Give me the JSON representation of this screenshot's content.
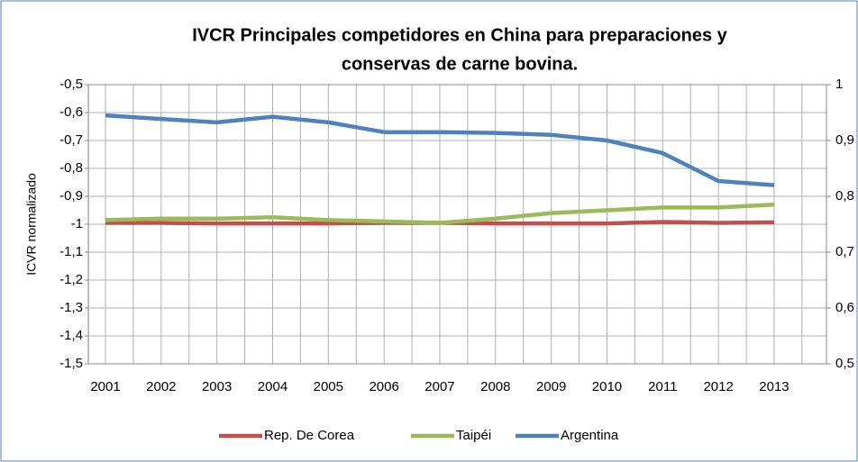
{
  "chart_data": {
    "type": "line",
    "title": [
      "IVCR  Principales competidores  en China para preparaciones y",
      "conservas de carne  bovina."
    ],
    "y_label": "ICVR normalizado",
    "categories": [
      "2001",
      "2002",
      "2003",
      "2004",
      "2005",
      "2006",
      "2007",
      "2008",
      "2009",
      "2010",
      "2011",
      "2012",
      "2013"
    ],
    "series": [
      {
        "name": "Rep. De Corea",
        "color": "#c0504d",
        "values": [
          -0.995,
          -0.995,
          -0.997,
          -0.997,
          -0.997,
          -0.995,
          -0.995,
          -0.997,
          -0.997,
          -0.997,
          -0.992,
          -0.995,
          -0.993
        ]
      },
      {
        "name": "Taipéi",
        "color": "#9bbb59",
        "values": [
          -0.985,
          -0.98,
          -0.98,
          -0.975,
          -0.985,
          -0.99,
          -0.995,
          -0.98,
          -0.96,
          -0.95,
          -0.94,
          -0.94,
          -0.93
        ]
      },
      {
        "name": "Argentina",
        "color": "#4f81bd",
        "values": [
          -0.61,
          -0.623,
          -0.635,
          -0.615,
          -0.635,
          -0.67,
          -0.67,
          -0.673,
          -0.68,
          -0.7,
          -0.745,
          -0.845,
          -0.86
        ]
      }
    ],
    "ylim": [
      -1.5,
      -0.5
    ],
    "yticks": [
      {
        "value": -0.5,
        "label": "-0,5"
      },
      {
        "value": -0.6,
        "label": "-0,6"
      },
      {
        "value": -0.7,
        "label": "-0,7"
      },
      {
        "value": -0.8,
        "label": "-0,8"
      },
      {
        "value": -0.9,
        "label": "-0,9"
      },
      -1,
      {
        "value": -1.1,
        "label": "-1,1"
      },
      {
        "value": -1.2,
        "label": "-1,2"
      },
      {
        "value": -1.3,
        "label": "-1,3"
      },
      {
        "value": -1.4,
        "label": "-1,4"
      },
      {
        "value": -1.5,
        "label": "-1,5"
      }
    ],
    "y2lim": [
      0.5,
      1
    ],
    "y2ticks": [
      {
        "value": 0.5,
        "label": "0,5"
      },
      {
        "value": 0.6,
        "label": "0,6"
      },
      {
        "value": 0.7,
        "label": "0,7"
      },
      {
        "value": 0.8,
        "label": "0,8"
      },
      {
        "value": 0.9,
        "label": "0,9"
      },
      1
    ],
    "grid": true,
    "legend": "bottom"
  }
}
